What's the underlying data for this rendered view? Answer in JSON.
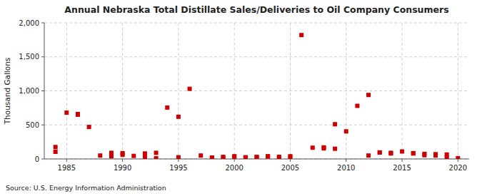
{
  "chart_data": {
    "type": "scatter",
    "title": "Annual Nebraska Total Distillate Sales/Deliveries to Oil Company Consumers",
    "y_label": "Thousand Gallons",
    "annotations": [
      "Source: U.S. Energy Information Administration"
    ],
    "x": [
      1984,
      1984,
      1985,
      1986,
      1986,
      1987,
      1988,
      1989,
      1989,
      1990,
      1990,
      1991,
      1992,
      1992,
      1993,
      1993,
      1994,
      1995,
      1995,
      1996,
      1997,
      1998,
      1998,
      1999,
      1999,
      2000,
      2000,
      2001,
      2001,
      2002,
      2002,
      2003,
      2003,
      2004,
      2004,
      2005,
      2005,
      2006,
      2007,
      2008,
      2008,
      2009,
      2009,
      2010,
      2011,
      2012,
      2012,
      2013,
      2013,
      2014,
      2014,
      2015,
      2016,
      2016,
      2017,
      2017,
      2018,
      2018,
      2019,
      2019,
      2020
    ],
    "values": [
      175,
      105,
      680,
      660,
      650,
      470,
      50,
      40,
      90,
      60,
      85,
      45,
      30,
      80,
      10,
      90,
      755,
      620,
      25,
      1030,
      50,
      15,
      20,
      20,
      30,
      30,
      40,
      20,
      25,
      25,
      30,
      40,
      35,
      30,
      25,
      20,
      40,
      1820,
      165,
      155,
      170,
      510,
      150,
      405,
      780,
      940,
      50,
      95,
      95,
      80,
      90,
      110,
      80,
      85,
      75,
      55,
      70,
      50,
      65,
      20,
      10
    ],
    "color": "#cc0000",
    "marker": "square",
    "xlim": [
      1983,
      2021
    ],
    "ylim": [
      0,
      2000
    ],
    "xticks": [
      1985,
      1990,
      1995,
      2000,
      2005,
      2010,
      2015,
      2020
    ],
    "yticks": [
      0,
      500,
      {
        "value": 1000,
        "label": "1,000"
      },
      {
        "value": 1500,
        "label": "1,500"
      },
      {
        "value": 2000,
        "label": "2,000"
      }
    ],
    "grid": true
  }
}
